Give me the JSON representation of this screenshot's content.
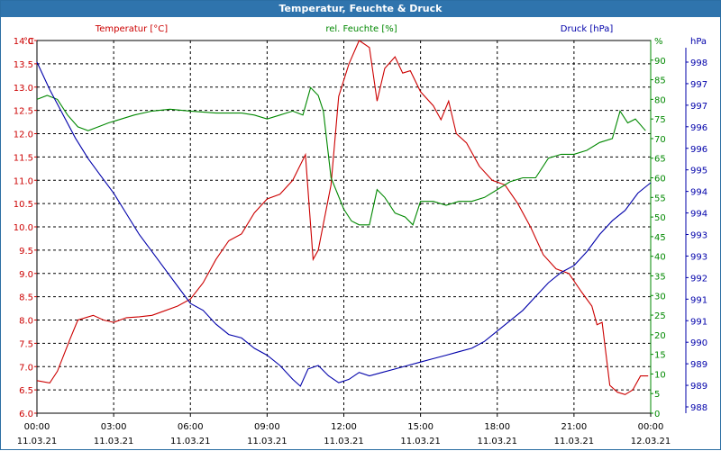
{
  "window": {
    "title": "Temperatur, Feuchte & Druck"
  },
  "chart_data": {
    "type": "line",
    "title": "Temperatur, Feuchte & Druck",
    "grid": true,
    "x_ticks": [
      {
        "time": "00:00",
        "date": "11.03.21"
      },
      {
        "time": "03:00",
        "date": "11.03.21"
      },
      {
        "time": "06:00",
        "date": "11.03.21"
      },
      {
        "time": "09:00",
        "date": "11.03.21"
      },
      {
        "time": "12:00",
        "date": "11.03.21"
      },
      {
        "time": "15:00",
        "date": "11.03.21"
      },
      {
        "time": "18:00",
        "date": "11.03.21"
      },
      {
        "time": "21:00",
        "date": "11.03.21"
      },
      {
        "time": "00:00",
        "date": "12.03.21"
      }
    ],
    "xlim_hours": [
      0,
      24
    ],
    "axes": {
      "temperature": {
        "label": "Temperatur [°C]",
        "unit": "°C",
        "side": "left",
        "color": "#cc0000",
        "ylim": [
          6.0,
          14.0
        ],
        "ticks": [
          "6.0",
          "6.5",
          "7.0",
          "7.5",
          "8.0",
          "8.5",
          "9.0",
          "9.5",
          "10.0",
          "10.5",
          "11.0",
          "11.5",
          "12.0",
          "12.5",
          "13.0",
          "13.5",
          "14.0"
        ]
      },
      "humidity": {
        "label": "rel. Feuchte [%]",
        "unit": "%",
        "side": "right",
        "color": "#008800",
        "ylim": [
          0,
          95
        ],
        "ticks": [
          "0",
          "5",
          "10",
          "15",
          "20",
          "25",
          "30",
          "35",
          "40",
          "45",
          "50",
          "55",
          "60",
          "65",
          "70",
          "75",
          "80",
          "85",
          "90",
          "95"
        ]
      },
      "pressure": {
        "label": "Druck [hPa]",
        "unit": "hPa",
        "side": "right",
        "color": "#0000aa",
        "ylim": [
          988,
          998
        ],
        "ticks": [
          "988",
          "989",
          "989",
          "990",
          "991",
          "991",
          "992",
          "993",
          "993",
          "994",
          "994",
          "995",
          "996",
          "996",
          "997",
          "997",
          "998"
        ]
      }
    },
    "series": [
      {
        "name": "Temperatur [°C]",
        "axis": "temperature",
        "color": "#cc0000",
        "points": [
          [
            0,
            6.7
          ],
          [
            0.5,
            6.65
          ],
          [
            0.8,
            6.9
          ],
          [
            1.3,
            7.6
          ],
          [
            1.6,
            8.0
          ],
          [
            2.2,
            8.1
          ],
          [
            2.6,
            8.0
          ],
          [
            3.0,
            7.95
          ],
          [
            3.5,
            8.05
          ],
          [
            4.0,
            8.07
          ],
          [
            4.5,
            8.1
          ],
          [
            5.0,
            8.2
          ],
          [
            5.5,
            8.3
          ],
          [
            6.0,
            8.45
          ],
          [
            6.5,
            8.8
          ],
          [
            7.0,
            9.3
          ],
          [
            7.5,
            9.7
          ],
          [
            8.0,
            9.85
          ],
          [
            8.5,
            10.3
          ],
          [
            9.0,
            10.6
          ],
          [
            9.5,
            10.7
          ],
          [
            10.0,
            11.0
          ],
          [
            10.5,
            11.55
          ],
          [
            10.8,
            9.3
          ],
          [
            11.0,
            9.5
          ],
          [
            11.5,
            10.9
          ],
          [
            11.8,
            12.8
          ],
          [
            12.2,
            13.5
          ],
          [
            12.6,
            14.0
          ],
          [
            13.0,
            13.85
          ],
          [
            13.3,
            12.7
          ],
          [
            13.6,
            13.4
          ],
          [
            14.0,
            13.65
          ],
          [
            14.3,
            13.3
          ],
          [
            14.6,
            13.35
          ],
          [
            15.0,
            12.9
          ],
          [
            15.5,
            12.6
          ],
          [
            15.8,
            12.3
          ],
          [
            16.1,
            12.7
          ],
          [
            16.4,
            12.0
          ],
          [
            16.8,
            11.8
          ],
          [
            17.3,
            11.3
          ],
          [
            17.8,
            11.0
          ],
          [
            18.3,
            10.9
          ],
          [
            18.8,
            10.5
          ],
          [
            19.3,
            10.0
          ],
          [
            19.8,
            9.4
          ],
          [
            20.3,
            9.1
          ],
          [
            20.8,
            9.0
          ],
          [
            21.3,
            8.6
          ],
          [
            21.7,
            8.3
          ],
          [
            21.9,
            7.9
          ],
          [
            22.1,
            7.95
          ],
          [
            22.4,
            6.6
          ],
          [
            22.7,
            6.45
          ],
          [
            23.0,
            6.4
          ],
          [
            23.3,
            6.5
          ],
          [
            23.6,
            6.8
          ],
          [
            23.9,
            6.8
          ]
        ]
      },
      {
        "name": "rel. Feuchte [%]",
        "axis": "humidity",
        "color": "#008800",
        "points": [
          [
            0,
            80
          ],
          [
            0.4,
            81
          ],
          [
            0.8,
            80
          ],
          [
            1.2,
            76
          ],
          [
            1.6,
            73
          ],
          [
            2.0,
            72
          ],
          [
            2.4,
            73
          ],
          [
            2.8,
            74
          ],
          [
            3.3,
            75
          ],
          [
            3.8,
            76
          ],
          [
            4.5,
            77
          ],
          [
            5.2,
            77.5
          ],
          [
            6.0,
            77
          ],
          [
            7.0,
            76.5
          ],
          [
            8.0,
            76.5
          ],
          [
            8.5,
            76
          ],
          [
            9.0,
            75
          ],
          [
            9.5,
            76
          ],
          [
            10.0,
            77
          ],
          [
            10.4,
            76
          ],
          [
            10.7,
            83
          ],
          [
            11.0,
            81
          ],
          [
            11.2,
            77
          ],
          [
            11.5,
            60
          ],
          [
            12.0,
            52
          ],
          [
            12.3,
            49
          ],
          [
            12.6,
            48
          ],
          [
            13.0,
            48
          ],
          [
            13.3,
            57
          ],
          [
            13.6,
            55
          ],
          [
            14.0,
            51
          ],
          [
            14.4,
            50
          ],
          [
            14.7,
            48
          ],
          [
            15.0,
            54
          ],
          [
            15.5,
            54
          ],
          [
            16.0,
            53
          ],
          [
            16.5,
            54
          ],
          [
            17.0,
            54
          ],
          [
            17.5,
            55
          ],
          [
            18.0,
            57
          ],
          [
            18.5,
            59
          ],
          [
            19.0,
            60
          ],
          [
            19.5,
            60
          ],
          [
            20.0,
            65
          ],
          [
            20.5,
            66
          ],
          [
            21.0,
            66
          ],
          [
            21.5,
            67
          ],
          [
            22.0,
            69
          ],
          [
            22.5,
            70
          ],
          [
            22.8,
            77
          ],
          [
            23.1,
            74
          ],
          [
            23.4,
            75
          ],
          [
            23.8,
            72
          ]
        ]
      },
      {
        "name": "Druck [hPa]",
        "axis": "pressure",
        "color": "#0000aa",
        "points": [
          [
            0,
            998
          ],
          [
            0.5,
            997.2
          ],
          [
            1.0,
            996.5
          ],
          [
            1.5,
            995.8
          ],
          [
            2.0,
            995.2
          ],
          [
            2.5,
            994.7
          ],
          [
            3.0,
            994.2
          ],
          [
            3.5,
            993.6
          ],
          [
            4.0,
            993.0
          ],
          [
            4.5,
            992.5
          ],
          [
            5.0,
            992.0
          ],
          [
            5.5,
            991.5
          ],
          [
            6.0,
            991.0
          ],
          [
            6.5,
            990.8
          ],
          [
            7.0,
            990.4
          ],
          [
            7.5,
            990.1
          ],
          [
            8.0,
            990.0
          ],
          [
            8.5,
            989.7
          ],
          [
            9.0,
            989.5
          ],
          [
            9.5,
            989.2
          ],
          [
            10.0,
            988.8
          ],
          [
            10.3,
            988.6
          ],
          [
            10.6,
            989.1
          ],
          [
            11.0,
            989.2
          ],
          [
            11.4,
            988.9
          ],
          [
            11.8,
            988.7
          ],
          [
            12.2,
            988.8
          ],
          [
            12.6,
            989.0
          ],
          [
            13.0,
            988.9
          ],
          [
            13.5,
            989.0
          ],
          [
            14.0,
            989.1
          ],
          [
            14.5,
            989.2
          ],
          [
            15.0,
            989.3
          ],
          [
            15.5,
            989.4
          ],
          [
            16.0,
            989.5
          ],
          [
            16.5,
            989.6
          ],
          [
            17.0,
            989.7
          ],
          [
            17.5,
            989.9
          ],
          [
            18.0,
            990.2
          ],
          [
            18.5,
            990.5
          ],
          [
            19.0,
            990.8
          ],
          [
            19.5,
            991.2
          ],
          [
            20.0,
            991.6
          ],
          [
            20.5,
            991.9
          ],
          [
            21.0,
            992.1
          ],
          [
            21.5,
            992.5
          ],
          [
            22.0,
            993.0
          ],
          [
            22.5,
            993.4
          ],
          [
            23.0,
            993.7
          ],
          [
            23.5,
            994.2
          ],
          [
            24.0,
            994.5
          ]
        ]
      }
    ]
  }
}
